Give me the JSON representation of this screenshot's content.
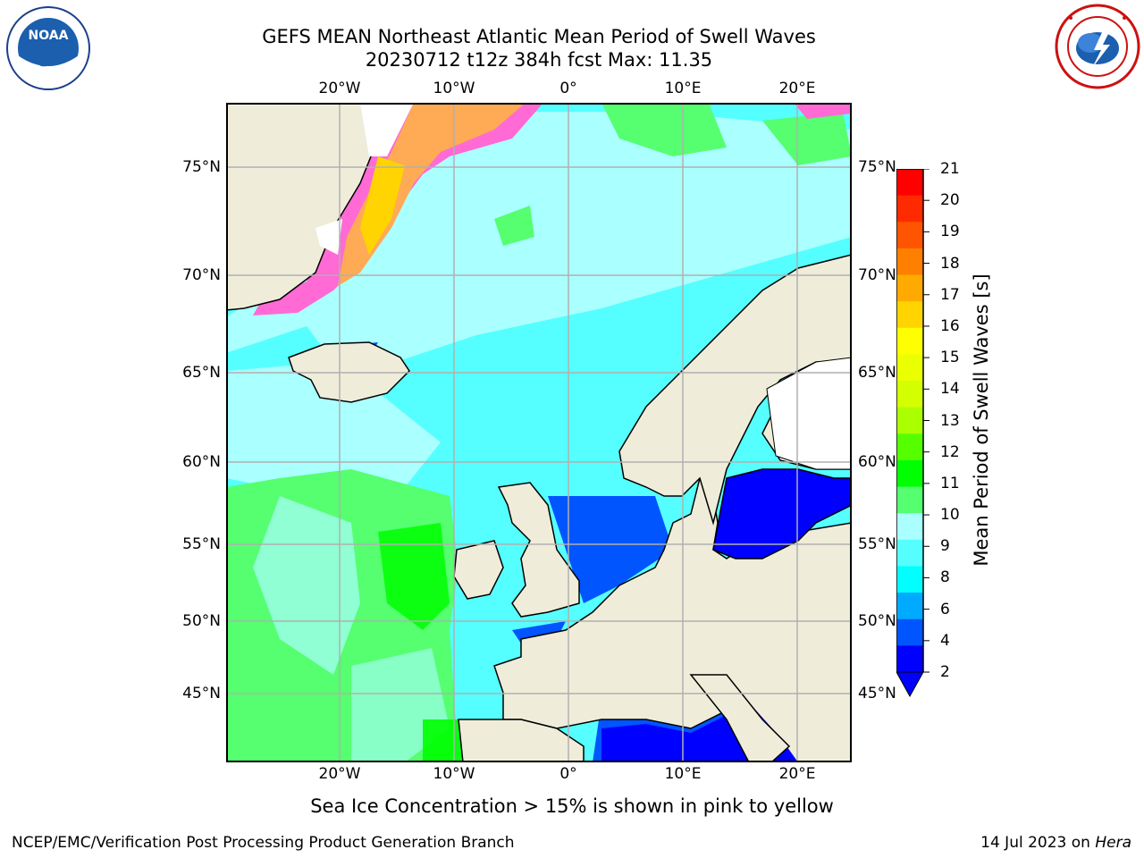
{
  "header": {
    "title_line1": "GEFS MEAN Northeast Atlantic Mean Period of Swell Waves",
    "title_line2": "20230712 t12z 384h fcst   Max: 11.35"
  },
  "logos": {
    "left": "NOAA",
    "right": "NATIONAL WEATHER SERVICE"
  },
  "map": {
    "lon_labels": [
      "20°W",
      "10°W",
      "0°",
      "10°E",
      "20°E"
    ],
    "lat_labels": [
      "75°N",
      "70°N",
      "65°N",
      "60°N",
      "55°N",
      "50°N",
      "45°N"
    ],
    "gridlines": true
  },
  "colorbar": {
    "label": "Mean Period of Swell Waves [s]",
    "ticks": [
      "21",
      "20",
      "19",
      "18",
      "17",
      "16",
      "15",
      "14",
      "13",
      "12",
      "11",
      "10",
      "9",
      "8",
      "6",
      "4",
      "2"
    ],
    "colors": [
      "#ff0000",
      "#ff2a00",
      "#ff5500",
      "#ff8000",
      "#ffaa00",
      "#ffd400",
      "#ffff00",
      "#eaff00",
      "#d4ff00",
      "#aaff00",
      "#55ff00",
      "#00ff00",
      "#55ff70",
      "#aaffff",
      "#55ffff",
      "#00ffff",
      "#00aaff",
      "#0055ff",
      "#0000ff"
    ],
    "extend": "min"
  },
  "note": "Sea Ice Concentration > 15% is shown in pink to yellow",
  "footer": {
    "left": "NCEP/EMC/Verification Post Processing Product Generation Branch",
    "date": "14 Jul 2023 on ",
    "machine": "Hera"
  }
}
